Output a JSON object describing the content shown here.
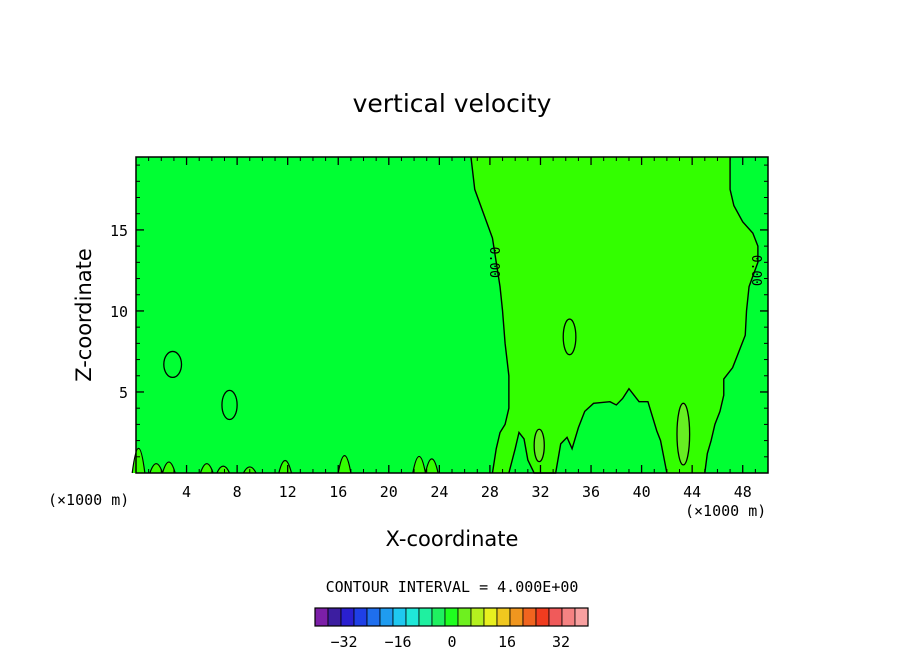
{
  "chart_data": {
    "type": "heatmap",
    "title": "vertical velocity",
    "xlabel": "X-coordinate",
    "ylabel": "Z-coordinate",
    "x_unit": "(×1000 m)",
    "y_unit": "(×1000 m)",
    "xlim": [
      0,
      50
    ],
    "ylim": [
      0,
      19.5
    ],
    "x_ticks": [
      4,
      8,
      12,
      16,
      20,
      24,
      28,
      32,
      36,
      40,
      44,
      48
    ],
    "y_ticks": [
      5,
      10,
      15
    ],
    "contour_interval_text": "CONTOUR INTERVAL = 4.000E+00",
    "contour_labels": [
      "0.00",
      "0.00"
    ],
    "colorbar": {
      "colors": [
        "#7c1fa8",
        "#3c1ea0",
        "#2a1fd0",
        "#1f3fe6",
        "#1f6fee",
        "#1f9cf0",
        "#1fc8f0",
        "#1fe8d8",
        "#1ff0a0",
        "#1ff060",
        "#1fff1f",
        "#6ef01f",
        "#b4f01f",
        "#e8f01f",
        "#f0c81f",
        "#f0961f",
        "#f0641f",
        "#f03c1f",
        "#f05a5a",
        "#f58282",
        "#f8a0a0"
      ],
      "tick_labels": [
        "−32",
        "−16",
        "0",
        "16",
        "32"
      ]
    },
    "field_colors": {
      "near_zero_negative": "#00ff33",
      "near_zero_positive": "#33ff00",
      "weak_positive": "#66ee22"
    },
    "contours": [
      {
        "name": "zero-line-left",
        "points": [
          [
            26.5,
            19.5
          ],
          [
            26.8,
            17.5
          ],
          [
            27.5,
            16
          ],
          [
            28.2,
            14.5
          ],
          [
            28.5,
            13
          ],
          [
            28.8,
            11.5
          ],
          [
            29,
            10
          ],
          [
            29.2,
            8
          ],
          [
            29.5,
            6
          ],
          [
            29.5,
            4
          ],
          [
            29.2,
            3
          ],
          [
            28.8,
            2.5
          ],
          [
            28.5,
            1.5
          ],
          [
            28.2,
            0
          ]
        ]
      },
      {
        "name": "zero-line-right",
        "points": [
          [
            47,
            19.5
          ],
          [
            47,
            17.5
          ],
          [
            47.3,
            16.5
          ],
          [
            48,
            15.5
          ],
          [
            48.8,
            14.8
          ],
          [
            49.2,
            14
          ],
          [
            49.2,
            13
          ],
          [
            48.5,
            11.5
          ],
          [
            48.3,
            10
          ],
          [
            48.2,
            8.5
          ],
          [
            47.6,
            7.3
          ],
          [
            47.2,
            6.5
          ],
          [
            46.5,
            5.8
          ],
          [
            46.5,
            4.8
          ],
          [
            46.2,
            3.8
          ],
          [
            45.8,
            3
          ],
          [
            45.5,
            2
          ],
          [
            45.2,
            1.2
          ],
          [
            45,
            0
          ]
        ]
      },
      {
        "name": "lower-boundary-cells",
        "points": [
          [
            29.5,
            0
          ],
          [
            30,
            1.5
          ],
          [
            30.3,
            2.5
          ],
          [
            30.7,
            2.1
          ],
          [
            31,
            0.8
          ],
          [
            31.5,
            0
          ],
          [
            33.2,
            0
          ],
          [
            33.6,
            1.8
          ],
          [
            34.1,
            2.2
          ],
          [
            34.5,
            1.5
          ],
          [
            35,
            2.8
          ],
          [
            35.5,
            3.8
          ],
          [
            36.2,
            4.3
          ],
          [
            37.5,
            4.4
          ],
          [
            38,
            4.2
          ],
          [
            38.5,
            4.6
          ],
          [
            39,
            5.2
          ],
          [
            39.8,
            4.4
          ],
          [
            40.5,
            4.4
          ],
          [
            41.2,
            2.6
          ],
          [
            41.5,
            2
          ],
          [
            42,
            0
          ]
        ]
      }
    ],
    "closed_regions": [
      {
        "name": "negative-cell-left",
        "cx": 2.9,
        "cy": 6.7,
        "rx": 0.7,
        "ry": 0.8
      },
      {
        "name": "negative-cell-mid",
        "cx": 7.4,
        "cy": 4.2,
        "rx": 0.6,
        "ry": 0.9
      },
      {
        "name": "negative-cell-upper-right",
        "cx": 34.3,
        "cy": 8.4,
        "rx": 0.5,
        "ry": 1.1
      },
      {
        "name": "positive-plume-32",
        "cx": 31.9,
        "cy": 1.7,
        "rx": 0.4,
        "ry": 1.0
      },
      {
        "name": "positive-plume-44",
        "cx": 43.3,
        "cy": 2.4,
        "rx": 0.5,
        "ry": 1.9
      }
    ]
  }
}
